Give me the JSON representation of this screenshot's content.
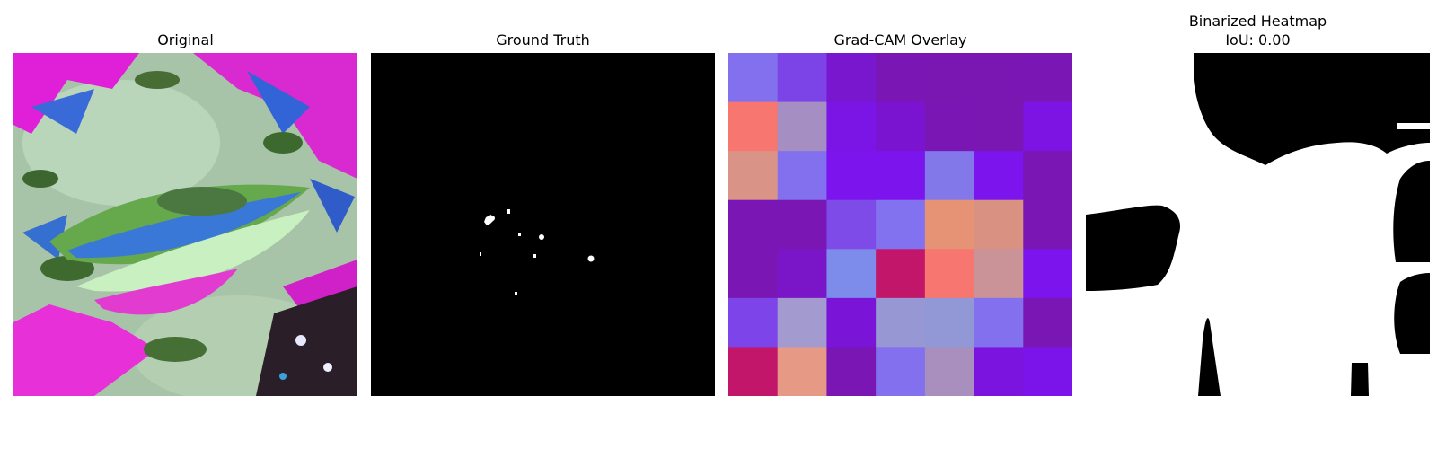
{
  "panels": {
    "original": {
      "title": "Original"
    },
    "ground_truth": {
      "title": "Ground Truth"
    },
    "gradcam": {
      "title": "Grad-CAM Overlay",
      "grid": [
        [
          "#8270ee",
          "#7c44e6",
          "#7817cd",
          "#7a16b4",
          "#7a16b1",
          "#7a16b1",
          "#7a16b4"
        ],
        [
          "#f77670",
          "#a48ec2",
          "#7b15e6",
          "#7a14d1",
          "#7a16b4",
          "#7a16b1",
          "#7d14e4"
        ],
        [
          "#d99387",
          "#8270ee",
          "#7c14ee",
          "#7c14ee",
          "#8278ea",
          "#7c14ee",
          "#7a16b4"
        ],
        [
          "#7a16b4",
          "#7a16b4",
          "#7e4ae8",
          "#8272f0",
          "#e69275",
          "#d99182",
          "#7a16b4"
        ],
        [
          "#7a16b4",
          "#7b16c8",
          "#7d8cea",
          "#c2166a",
          "#f77670",
          "#c99397",
          "#7c14ee"
        ],
        [
          "#7d44ea",
          "#a39ad0",
          "#7a14d6",
          "#9797d4",
          "#9298d6",
          "#8270ee",
          "#7a16b4"
        ],
        [
          "#c2166a",
          "#e69a85",
          "#7a16b4",
          "#8270ee",
          "#a88fbd",
          "#7c14e0",
          "#7b14ea"
        ]
      ]
    },
    "binarized": {
      "title_line1": "Binarized Heatmap",
      "title_line2": "IoU: 0.00"
    }
  }
}
